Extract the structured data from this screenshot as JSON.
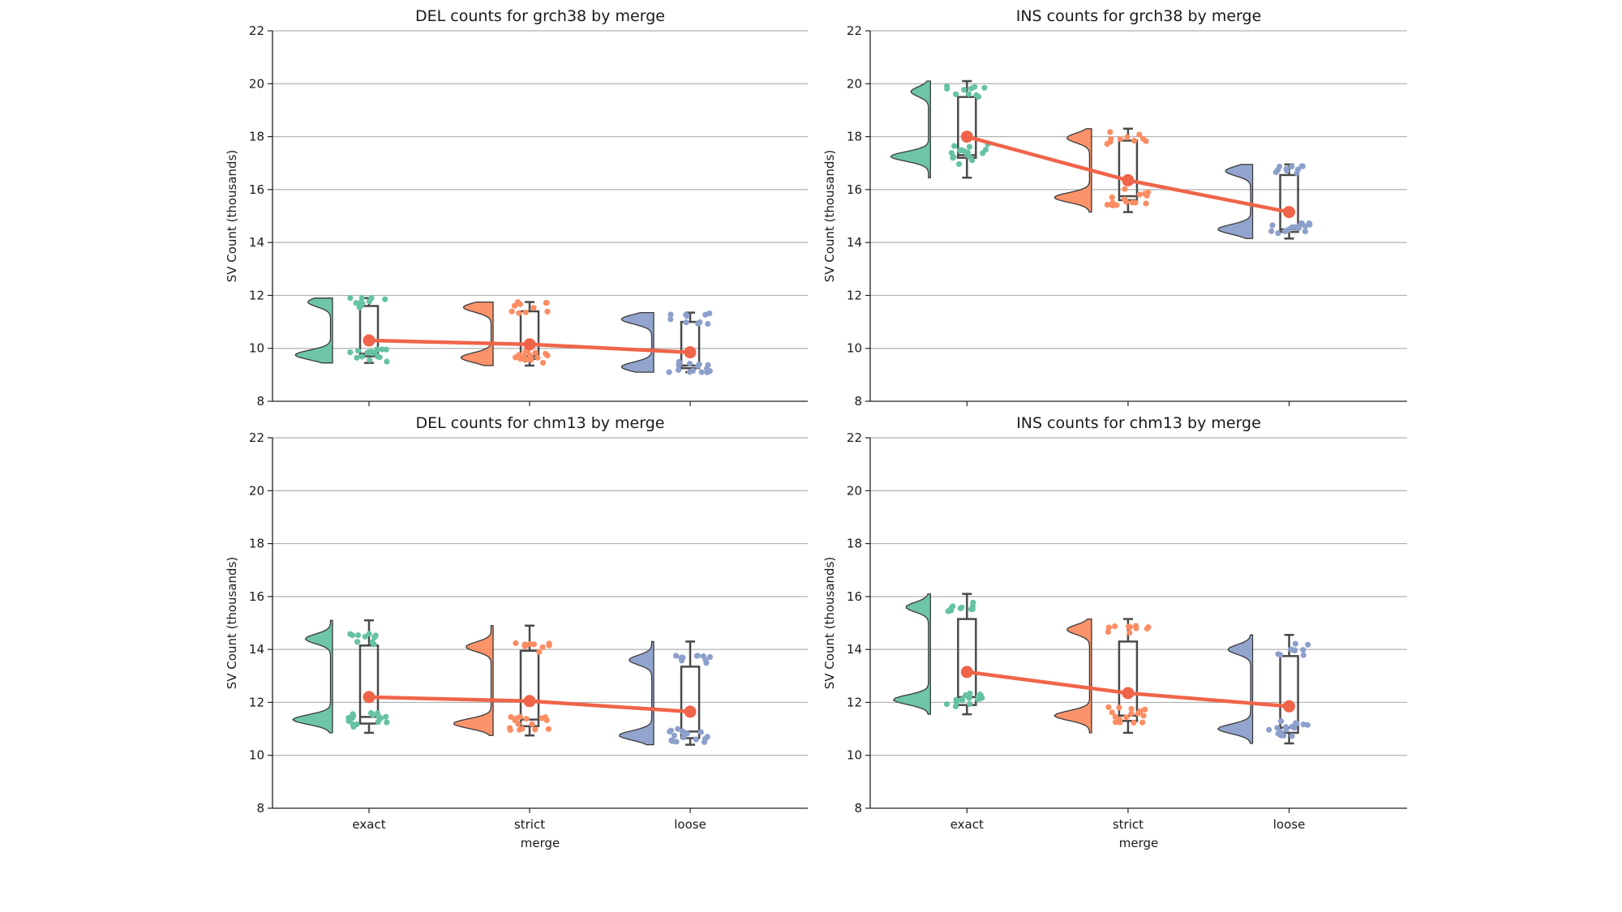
{
  "figure": {
    "shared_ylabel": "SV Count (thousands)",
    "shared_xlabel": "merge",
    "colors": {
      "exact": "#66c2a5",
      "strict": "#fc8d62",
      "loose": "#8da0cb",
      "mean_line": "#f06449",
      "box": "#4a4a4a",
      "grid": "#b0b0b0"
    }
  },
  "chart_data": [
    {
      "type": "raincloud",
      "title": "DEL counts for grch38 by merge",
      "categories": [
        "exact",
        "strict",
        "loose"
      ],
      "ylabel": "SV Count (thousands)",
      "xlabel": "",
      "ylim": [
        8,
        22
      ],
      "yticks": [
        8,
        10,
        12,
        14,
        16,
        18,
        20,
        22
      ],
      "show_xticklabels": false,
      "grid": "y",
      "means": [
        10.3,
        10.15,
        9.85
      ],
      "box": [
        {
          "min": 9.45,
          "q1": 9.7,
          "median": 9.8,
          "q3": 11.6,
          "max": 11.9
        },
        {
          "min": 9.35,
          "q1": 9.6,
          "median": 9.7,
          "q3": 11.4,
          "max": 11.75
        },
        {
          "min": 9.1,
          "q1": 9.25,
          "median": 9.35,
          "q3": 11.0,
          "max": 11.35
        }
      ],
      "clusters": [
        {
          "low": 9.75,
          "high": 11.75,
          "low_weight": 0.7,
          "high_weight": 0.45
        },
        {
          "low": 9.65,
          "high": 11.55,
          "low_weight": 0.6,
          "high_weight": 0.55
        },
        {
          "low": 9.3,
          "high": 11.1,
          "low_weight": 0.6,
          "high_weight": 0.6
        }
      ]
    },
    {
      "type": "raincloud",
      "title": "INS counts for grch38 by merge",
      "categories": [
        "exact",
        "strict",
        "loose"
      ],
      "ylabel": "SV Count (thousands)",
      "xlabel": "",
      "ylim": [
        8,
        22
      ],
      "yticks": [
        8,
        10,
        12,
        14,
        16,
        18,
        20,
        22
      ],
      "show_xticklabels": false,
      "grid": "y",
      "means": [
        18.0,
        16.35,
        15.15
      ],
      "box": [
        {
          "min": 16.45,
          "q1": 17.2,
          "median": 17.3,
          "q3": 19.5,
          "max": 20.1
        },
        {
          "min": 15.15,
          "q1": 15.6,
          "median": 15.75,
          "q3": 17.85,
          "max": 18.3
        },
        {
          "min": 14.15,
          "q1": 14.4,
          "median": 14.5,
          "q3": 16.55,
          "max": 16.95
        }
      ],
      "clusters": [
        {
          "low": 17.25,
          "high": 19.7,
          "low_weight": 0.75,
          "high_weight": 0.35
        },
        {
          "low": 15.7,
          "high": 17.95,
          "low_weight": 0.7,
          "high_weight": 0.45
        },
        {
          "low": 14.5,
          "high": 16.7,
          "low_weight": 0.65,
          "high_weight": 0.5
        }
      ]
    },
    {
      "type": "raincloud",
      "title": "DEL counts for chm13 by merge",
      "categories": [
        "exact",
        "strict",
        "loose"
      ],
      "ylabel": "SV Count (thousands)",
      "xlabel": "merge",
      "ylim": [
        8,
        22
      ],
      "yticks": [
        8,
        10,
        12,
        14,
        16,
        18,
        20,
        22
      ],
      "show_xticklabels": true,
      "grid": "y",
      "means": [
        12.2,
        12.05,
        11.65
      ],
      "box": [
        {
          "min": 10.85,
          "q1": 11.2,
          "median": 11.45,
          "q3": 14.15,
          "max": 15.1
        },
        {
          "min": 10.75,
          "q1": 11.1,
          "median": 11.35,
          "q3": 13.95,
          "max": 14.9
        },
        {
          "min": 10.4,
          "q1": 10.65,
          "median": 10.9,
          "q3": 13.35,
          "max": 14.3
        }
      ],
      "clusters": [
        {
          "low": 11.35,
          "high": 14.4,
          "low_weight": 0.75,
          "high_weight": 0.5
        },
        {
          "low": 11.2,
          "high": 14.1,
          "low_weight": 0.75,
          "high_weight": 0.5
        },
        {
          "low": 10.75,
          "high": 13.6,
          "low_weight": 0.65,
          "high_weight": 0.45
        }
      ]
    },
    {
      "type": "raincloud",
      "title": "INS counts for chm13 by merge",
      "categories": [
        "exact",
        "strict",
        "loose"
      ],
      "ylabel": "SV Count (thousands)",
      "xlabel": "merge",
      "ylim": [
        8,
        22
      ],
      "yticks": [
        8,
        10,
        12,
        14,
        16,
        18,
        20,
        22
      ],
      "show_xticklabels": true,
      "grid": "y",
      "means": [
        13.15,
        12.35,
        11.85
      ],
      "box": [
        {
          "min": 11.55,
          "q1": 11.9,
          "median": 12.2,
          "q3": 15.15,
          "max": 16.1
        },
        {
          "min": 10.85,
          "q1": 11.3,
          "median": 11.5,
          "q3": 14.3,
          "max": 15.15
        },
        {
          "min": 10.45,
          "q1": 10.85,
          "median": 11.05,
          "q3": 13.75,
          "max": 14.55
        }
      ],
      "clusters": [
        {
          "low": 12.1,
          "high": 15.6,
          "low_weight": 0.7,
          "high_weight": 0.45
        },
        {
          "low": 11.5,
          "high": 14.75,
          "low_weight": 0.7,
          "high_weight": 0.45
        },
        {
          "low": 11.0,
          "high": 14.0,
          "low_weight": 0.65,
          "high_weight": 0.45
        }
      ]
    }
  ]
}
